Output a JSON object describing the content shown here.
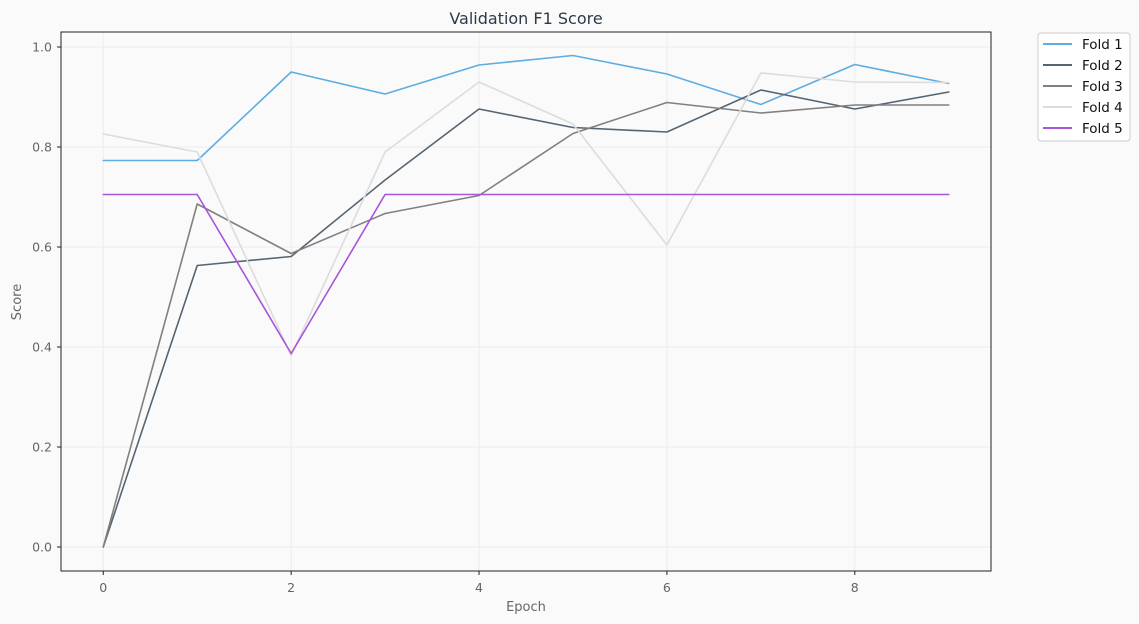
{
  "chart_data": {
    "type": "line",
    "title": "Validation F1 Score",
    "xlabel": "Epoch",
    "ylabel": "Score",
    "xlim": [
      -0.45,
      9.45
    ],
    "ylim": [
      -0.048,
      1.03
    ],
    "x_ticks": [
      0,
      2,
      4,
      6,
      8
    ],
    "y_ticks": [
      0.0,
      0.2,
      0.4,
      0.6,
      0.8,
      1.0
    ],
    "grid": true,
    "legend_position": "outside-top-right",
    "x": [
      0,
      1,
      2,
      3,
      4,
      5,
      6,
      7,
      8,
      9
    ],
    "series": [
      {
        "name": "Fold 1",
        "color": "#5dade2",
        "values": [
          0.773,
          0.773,
          0.95,
          0.906,
          0.964,
          0.983,
          0.946,
          0.885,
          0.965,
          0.927
        ]
      },
      {
        "name": "Fold 2",
        "color": "#566573",
        "values": [
          0.0,
          0.563,
          0.581,
          0.734,
          0.876,
          0.839,
          0.83,
          0.914,
          0.876,
          0.91
        ]
      },
      {
        "name": "Fold 3",
        "color": "#808080",
        "values": [
          0.0,
          0.686,
          0.587,
          0.667,
          0.703,
          0.827,
          0.889,
          0.868,
          0.884,
          0.884
        ]
      },
      {
        "name": "Fold 4",
        "color": "#dcdcdc",
        "values": [
          0.826,
          0.79,
          0.383,
          0.79,
          0.93,
          0.846,
          0.604,
          0.948,
          0.93,
          0.929
        ]
      },
      {
        "name": "Fold 5",
        "color": "#a855d8",
        "values": [
          0.705,
          0.705,
          0.387,
          0.705,
          0.705,
          0.705,
          0.705,
          0.705,
          0.705,
          0.705
        ]
      }
    ]
  }
}
